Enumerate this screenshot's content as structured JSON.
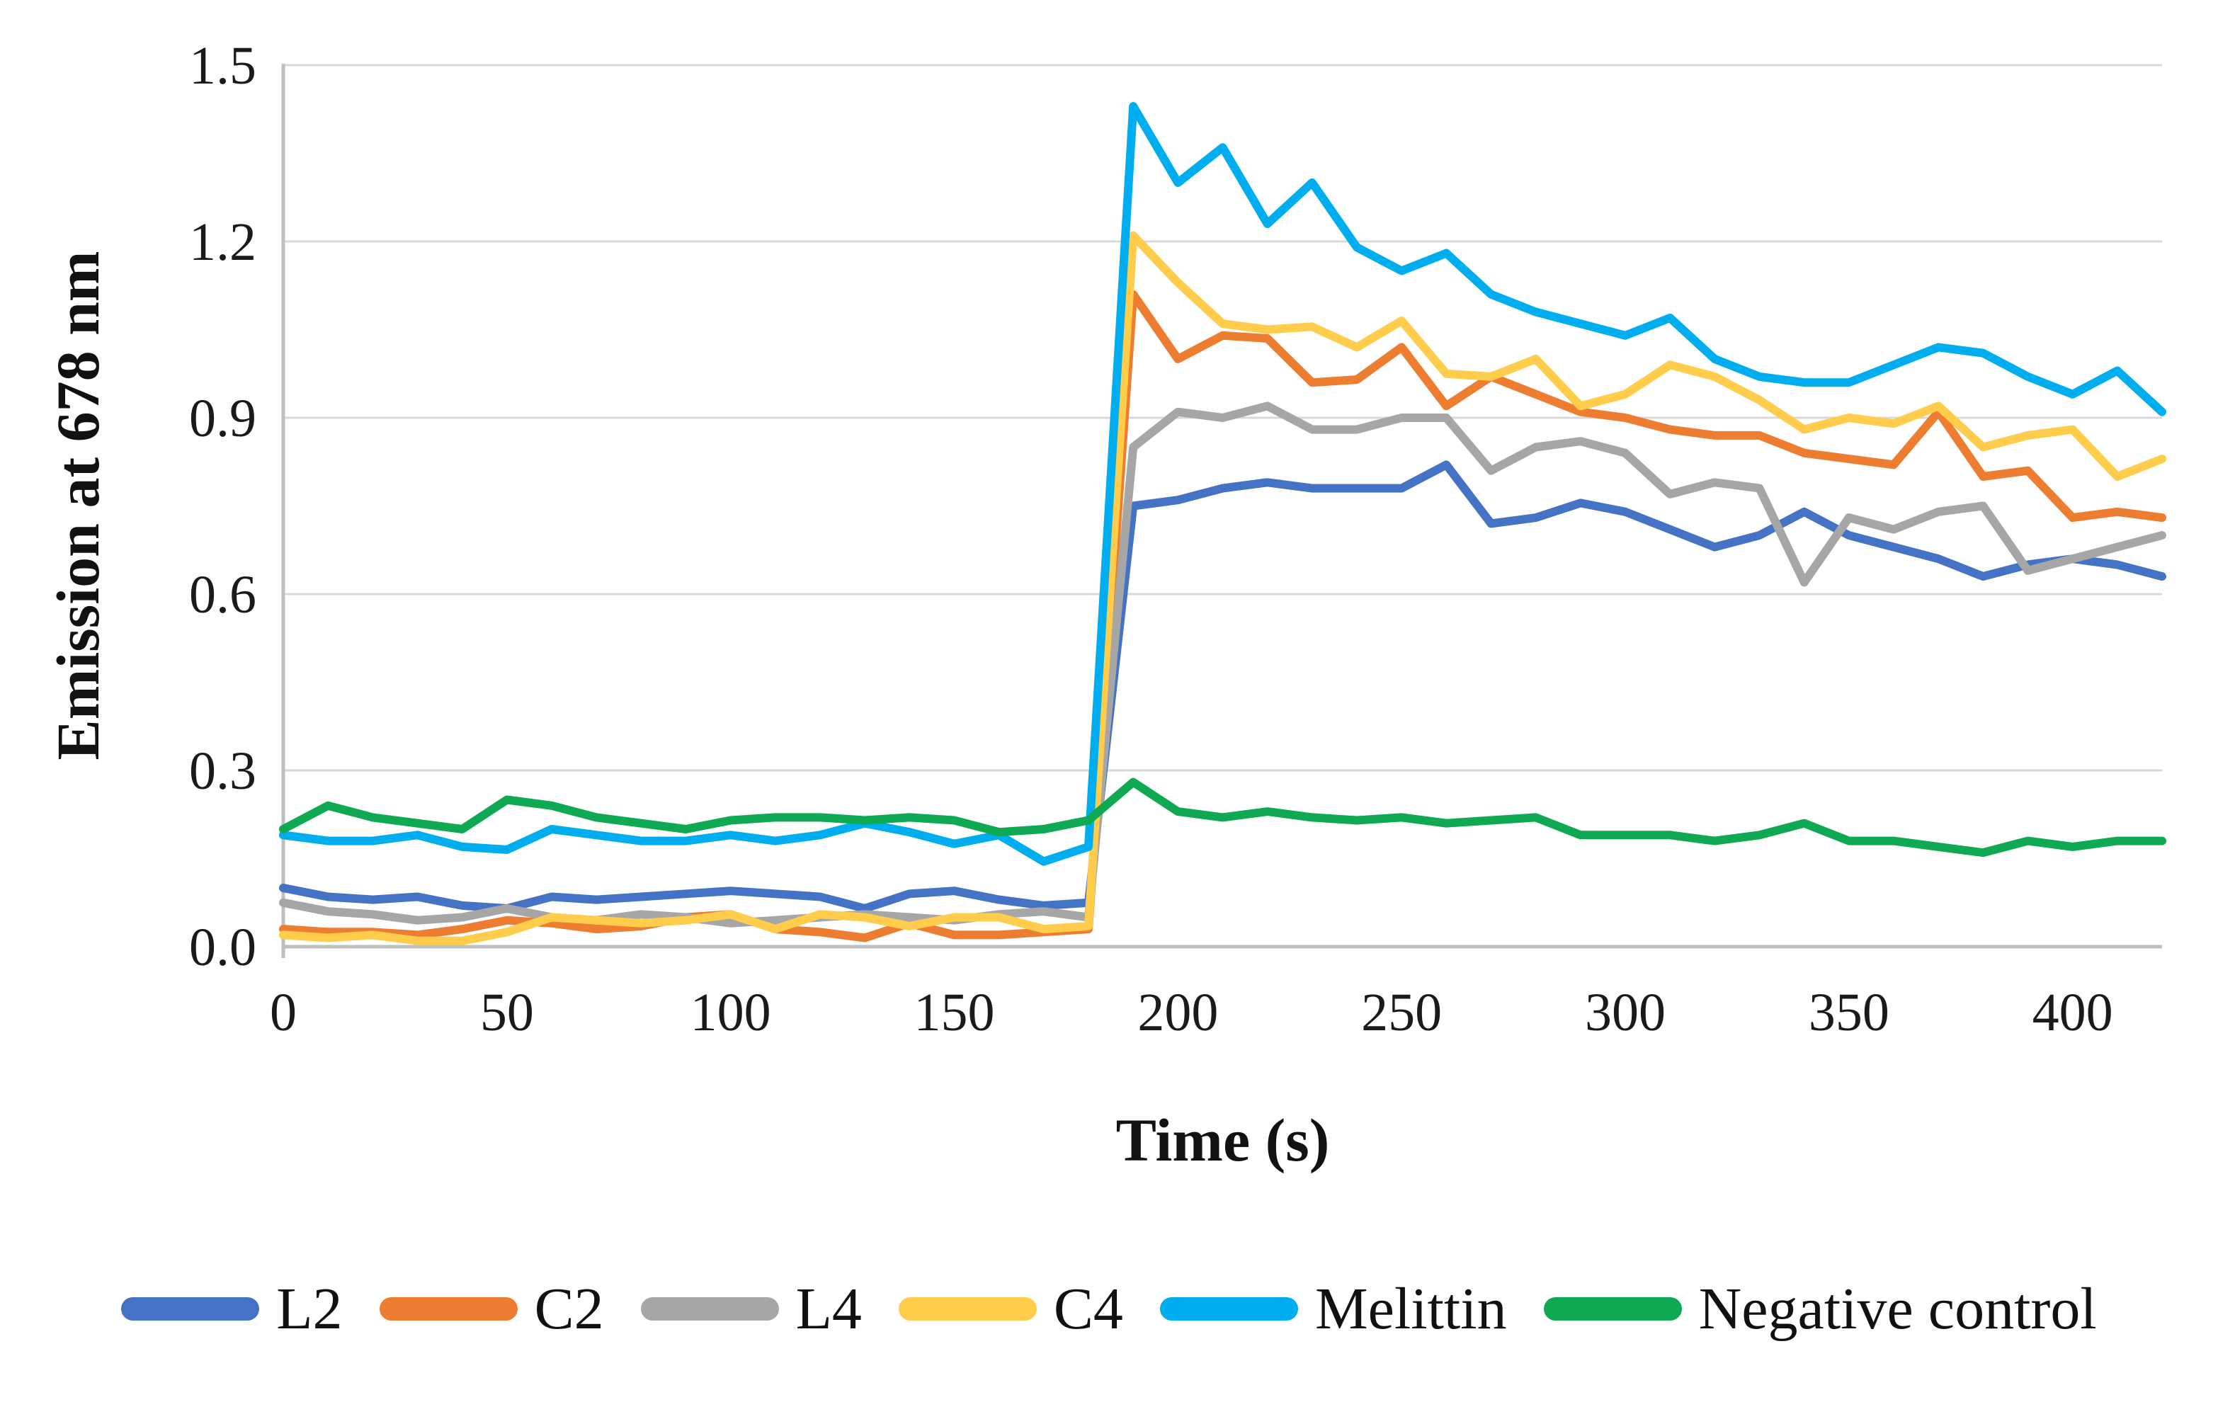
{
  "chart_data": {
    "type": "line",
    "title": "",
    "xlabel": "Time (s)",
    "ylabel": "Emission at 678 nm",
    "xlim": [
      0,
      420
    ],
    "ylim": [
      0,
      1.5
    ],
    "x_ticks": [
      "0",
      "50",
      "100",
      "150",
      "200",
      "250",
      "300",
      "350",
      "400"
    ],
    "x_tick_values": [
      0,
      50,
      100,
      150,
      200,
      250,
      300,
      350,
      400
    ],
    "y_ticks": [
      "0.0",
      "0.3",
      "0.6",
      "0.9",
      "1.2",
      "1.5"
    ],
    "y_tick_values": [
      0,
      0.3,
      0.6,
      0.9,
      1.2,
      1.5
    ],
    "grid": true,
    "gridline_color": "#D9D9D9",
    "axis_line_color": "#BFBFBF",
    "legend_position": "bottom",
    "x": [
      0,
      10,
      20,
      30,
      40,
      50,
      60,
      70,
      80,
      90,
      100,
      110,
      120,
      130,
      140,
      150,
      160,
      170,
      180,
      190,
      200,
      210,
      220,
      230,
      240,
      250,
      260,
      270,
      280,
      290,
      300,
      310,
      320,
      330,
      340,
      350,
      360,
      370,
      380,
      390,
      400,
      410,
      420
    ],
    "series": [
      {
        "name": "L2",
        "color": "#4472C4",
        "values": [
          0.1,
          0.085,
          0.08,
          0.085,
          0.07,
          0.065,
          0.085,
          0.08,
          0.085,
          0.09,
          0.095,
          0.09,
          0.085,
          0.065,
          0.09,
          0.095,
          0.08,
          0.07,
          0.075,
          0.75,
          0.76,
          0.78,
          0.79,
          0.78,
          0.78,
          0.78,
          0.82,
          0.72,
          0.73,
          0.755,
          0.74,
          0.71,
          0.68,
          0.7,
          0.74,
          0.7,
          0.68,
          0.66,
          0.63,
          0.65,
          0.66,
          0.65,
          0.63
        ]
      },
      {
        "name": "C2",
        "color": "#ED7D31",
        "values": [
          0.03,
          0.025,
          0.025,
          0.02,
          0.03,
          0.045,
          0.04,
          0.03,
          0.035,
          0.05,
          0.055,
          0.03,
          0.025,
          0.015,
          0.04,
          0.02,
          0.02,
          0.025,
          0.03,
          1.11,
          1.0,
          1.04,
          1.035,
          0.96,
          0.965,
          1.02,
          0.92,
          0.97,
          0.94,
          0.91,
          0.9,
          0.88,
          0.87,
          0.87,
          0.84,
          0.83,
          0.82,
          0.91,
          0.8,
          0.81,
          0.73,
          0.74,
          0.73
        ]
      },
      {
        "name": "L4",
        "color": "#A6A6A6",
        "values": [
          0.075,
          0.06,
          0.055,
          0.045,
          0.05,
          0.065,
          0.05,
          0.045,
          0.055,
          0.05,
          0.04,
          0.045,
          0.05,
          0.055,
          0.05,
          0.045,
          0.055,
          0.06,
          0.05,
          0.85,
          0.91,
          0.9,
          0.92,
          0.88,
          0.88,
          0.9,
          0.9,
          0.81,
          0.85,
          0.86,
          0.84,
          0.77,
          0.79,
          0.78,
          0.62,
          0.73,
          0.71,
          0.74,
          0.75,
          0.64,
          0.66,
          0.68,
          0.7
        ]
      },
      {
        "name": "C4",
        "color": "#FFCD4B",
        "values": [
          0.02,
          0.015,
          0.02,
          0.01,
          0.01,
          0.025,
          0.05,
          0.045,
          0.04,
          0.045,
          0.055,
          0.03,
          0.055,
          0.05,
          0.035,
          0.05,
          0.05,
          0.03,
          0.035,
          1.21,
          1.13,
          1.06,
          1.05,
          1.055,
          1.02,
          1.065,
          0.975,
          0.97,
          1.0,
          0.92,
          0.94,
          0.99,
          0.97,
          0.93,
          0.88,
          0.9,
          0.89,
          0.92,
          0.85,
          0.87,
          0.88,
          0.8,
          0.83
        ]
      },
      {
        "name": "Melittin",
        "color": "#00AEEF",
        "values": [
          0.19,
          0.18,
          0.18,
          0.19,
          0.17,
          0.165,
          0.2,
          0.19,
          0.18,
          0.18,
          0.19,
          0.18,
          0.19,
          0.21,
          0.195,
          0.175,
          0.19,
          0.145,
          0.17,
          1.43,
          1.3,
          1.36,
          1.23,
          1.3,
          1.19,
          1.15,
          1.18,
          1.11,
          1.08,
          1.06,
          1.04,
          1.07,
          1.0,
          0.97,
          0.96,
          0.96,
          0.99,
          1.02,
          1.01,
          0.97,
          0.94,
          0.98,
          0.91
        ]
      },
      {
        "name": "Negative control",
        "color": "#0EA952",
        "values": [
          0.2,
          0.24,
          0.22,
          0.21,
          0.2,
          0.25,
          0.24,
          0.22,
          0.21,
          0.2,
          0.215,
          0.22,
          0.22,
          0.215,
          0.22,
          0.215,
          0.195,
          0.2,
          0.215,
          0.28,
          0.23,
          0.22,
          0.23,
          0.22,
          0.215,
          0.22,
          0.21,
          0.215,
          0.22,
          0.19,
          0.19,
          0.19,
          0.18,
          0.19,
          0.21,
          0.18,
          0.18,
          0.17,
          0.16,
          0.18,
          0.17,
          0.18,
          0.18
        ]
      }
    ]
  }
}
